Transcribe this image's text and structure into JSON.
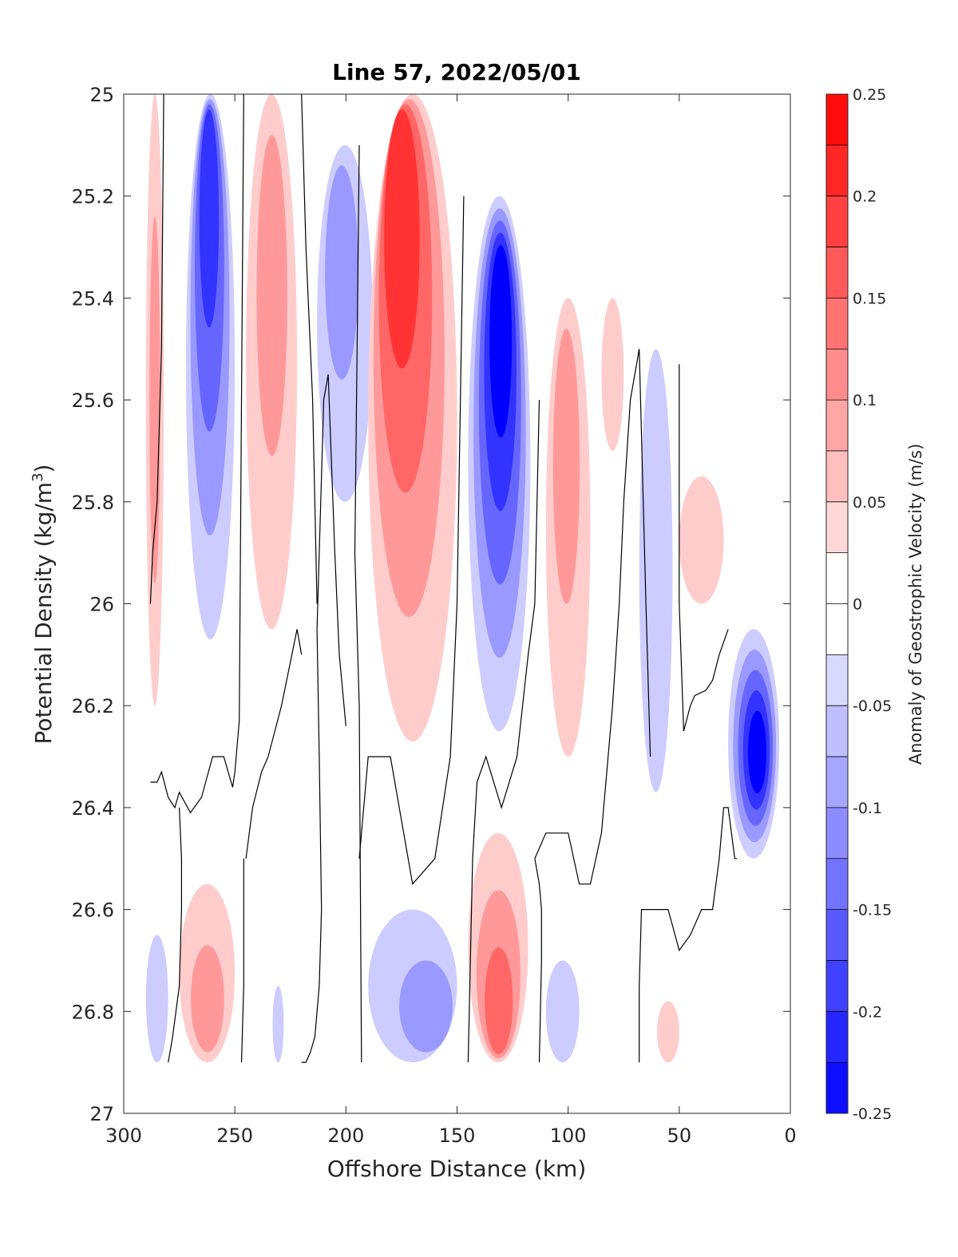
{
  "chart_data": {
    "type": "heatmap",
    "subtype": "filled-contour",
    "title": "Line 57, 2022/05/01",
    "xlabel": "Offshore Distance (km)",
    "ylabel_main": "Potential Density (kg/m",
    "ylabel_sup": "3",
    "ylabel_end": ")",
    "colorbar_label": "Anomaly of Geostrophic Velocity (m/s)",
    "xlim": [
      300,
      0
    ],
    "ylim": [
      27,
      25
    ],
    "x_reversed": true,
    "y_reversed": true,
    "xticks": [
      300,
      250,
      200,
      150,
      100,
      50,
      0
    ],
    "xtick_labels": [
      "300",
      "250",
      "200",
      "150",
      "100",
      "50",
      "0"
    ],
    "yticks": [
      25,
      25.2,
      25.4,
      25.6,
      25.8,
      26,
      26.2,
      26.4,
      26.6,
      26.8,
      27
    ],
    "ytick_labels": [
      "25",
      "25.2",
      "25.4",
      "25.6",
      "25.8",
      "26",
      "26.2",
      "26.4",
      "26.6",
      "26.8",
      "27"
    ],
    "clim": [
      -0.25,
      0.25
    ],
    "colorbar_ticks": [
      0.25,
      0.2,
      0.15,
      0.1,
      0.05,
      0,
      -0.05,
      -0.1,
      -0.15,
      -0.2,
      -0.25
    ],
    "colorbar_tick_labels": [
      "0.25",
      "0.2",
      "0.15",
      "0.1",
      "0.05",
      "0",
      "-0.05",
      "-0.1",
      "-0.15",
      "-0.2",
      "-0.25"
    ],
    "colormap": {
      "levels": [
        0.225,
        0.175,
        0.125,
        0.075,
        0.025,
        -0.025,
        -0.075,
        -0.125,
        -0.175,
        -0.225
      ],
      "level_step": 0.025,
      "positive_color": "#ff0000",
      "negative_color": "#0000ff",
      "zero_color": "#ffffff"
    },
    "grid": false,
    "zero_contour_color": "#000000",
    "features": [
      {
        "x": [
          290,
          282
        ],
        "y": [
          25.0,
          26.2
        ],
        "peak": 0.08
      },
      {
        "x": [
          272,
          250
        ],
        "y": [
          25.0,
          26.07
        ],
        "peak": -0.18,
        "peak_x": 262,
        "peak_y": 25.05
      },
      {
        "x": [
          245,
          222
        ],
        "y": [
          25.0,
          26.05
        ],
        "peak": 0.1,
        "peak_x": 233,
        "peak_y": 25.2
      },
      {
        "x": [
          213,
          188
        ],
        "y": [
          25.1,
          25.8
        ],
        "peak": -0.08,
        "peak_x": 204,
        "peak_y": 25.2
      },
      {
        "x": [
          190,
          150
        ],
        "y": [
          25.0,
          26.27
        ],
        "peak": 0.18,
        "peak_x": 178,
        "peak_y": 25.05
      },
      {
        "x": [
          145,
          117
        ],
        "y": [
          25.2,
          26.25
        ],
        "peak": -0.24,
        "peak_x": 130,
        "peak_y": 25.35
      },
      {
        "x": [
          110,
          90
        ],
        "y": [
          25.4,
          26.3
        ],
        "peak": 0.1,
        "peak_x": 102,
        "peak_y": 25.55
      },
      {
        "x": [
          85,
          75
        ],
        "y": [
          25.4,
          25.7
        ],
        "peak": 0.04
      },
      {
        "x": [
          68,
          53
        ],
        "y": [
          25.5,
          26.37
        ],
        "peak": -0.05
      },
      {
        "x": [
          50,
          30
        ],
        "y": [
          25.75,
          26.0
        ],
        "peak": 0.05
      },
      {
        "x": [
          28,
          5
        ],
        "y": [
          26.05,
          26.5
        ],
        "peak": -0.24,
        "peak_x": 14,
        "peak_y": 26.3
      },
      {
        "x": [
          290,
          280
        ],
        "y": [
          26.65,
          26.9
        ],
        "peak": -0.03
      },
      {
        "x": [
          275,
          250
        ],
        "y": [
          26.55,
          26.9
        ],
        "peak": 0.08,
        "peak_x": 262,
        "peak_y": 26.85
      },
      {
        "x": [
          233,
          228
        ],
        "y": [
          26.75,
          26.9
        ],
        "peak": -0.03
      },
      {
        "x": [
          190,
          150
        ],
        "y": [
          26.6,
          26.9
        ],
        "peak": -0.09,
        "peak_x": 155,
        "peak_y": 26.85
      },
      {
        "x": [
          145,
          118
        ],
        "y": [
          26.45,
          26.9
        ],
        "peak": 0.15,
        "peak_x": 131,
        "peak_y": 26.87
      },
      {
        "x": [
          110,
          95
        ],
        "y": [
          26.7,
          26.9
        ],
        "peak": -0.04
      },
      {
        "x": [
          60,
          50
        ],
        "y": [
          26.78,
          26.9
        ],
        "peak": 0.06
      }
    ],
    "zero_contours": [
      {
        "x": [
          282,
          283,
          285,
          287,
          288
        ],
        "y": [
          25.0,
          25.5,
          25.8,
          25.9,
          26.0
        ]
      },
      {
        "x": [
          288,
          285,
          283,
          280,
          277,
          275,
          270,
          265,
          260,
          255,
          251,
          250,
          248,
          247,
          246
        ],
        "y": [
          26.35,
          26.35,
          26.33,
          26.38,
          26.4,
          26.37,
          26.41,
          26.38,
          26.3,
          26.3,
          26.36,
          26.33,
          26.23,
          25.6,
          25.0
        ]
      },
      {
        "x": [
          275,
          274,
          274,
          275,
          278,
          280
        ],
        "y": [
          26.4,
          26.5,
          26.6,
          26.75,
          26.85,
          26.9
        ]
      },
      {
        "x": [
          246,
          246,
          246,
          247
        ],
        "y": [
          26.5,
          26.6,
          26.75,
          26.9
        ]
      },
      {
        "x": [
          220,
          218,
          215,
          213
        ],
        "y": [
          25.0,
          25.3,
          25.6,
          26.0
        ]
      },
      {
        "x": [
          245,
          242,
          238,
          235,
          229,
          222,
          220
        ],
        "y": [
          26.5,
          26.4,
          26.33,
          26.3,
          26.2,
          26.05,
          26.1
        ]
      },
      {
        "x": [
          213,
          212,
          211,
          212,
          214,
          216,
          218,
          220
        ],
        "y": [
          26.05,
          26.3,
          26.6,
          26.75,
          26.85,
          26.88,
          26.9,
          26.9
        ]
      },
      {
        "x": [
          213,
          210,
          208,
          205,
          203,
          200
        ],
        "y": [
          26.05,
          25.6,
          25.55,
          25.9,
          26.1,
          26.24
        ]
      },
      {
        "x": [
          194,
          195,
          196,
          194,
          193
        ],
        "y": [
          25.1,
          25.5,
          25.9,
          26.2,
          26.9
        ]
      },
      {
        "x": [
          194,
          190,
          187,
          183,
          180,
          170,
          160,
          153,
          150,
          147
        ],
        "y": [
          26.5,
          26.3,
          26.3,
          26.3,
          26.3,
          26.55,
          26.5,
          26.3,
          26.0,
          25.2
        ]
      },
      {
        "x": [
          145,
          143,
          141,
          137,
          130,
          123,
          118,
          115,
          113
        ],
        "y": [
          26.9,
          26.5,
          26.35,
          26.3,
          26.4,
          26.3,
          26.1,
          26.0,
          25.6
        ]
      },
      {
        "x": [
          113,
          112,
          112,
          113,
          115
        ],
        "y": [
          26.9,
          26.7,
          26.6,
          26.55,
          26.5
        ]
      },
      {
        "x": [
          115,
          110,
          106,
          100,
          95,
          90,
          85,
          80,
          77,
          75,
          72,
          68,
          65,
          63
        ],
        "y": [
          26.5,
          26.45,
          26.45,
          26.45,
          26.55,
          26.55,
          26.45,
          26.2,
          26.0,
          25.8,
          25.6,
          25.5,
          26.0,
          26.3
        ]
      },
      {
        "x": [
          68,
          68,
          67,
          65,
          63
        ],
        "y": [
          26.9,
          26.75,
          26.6,
          26.6,
          26.6
        ]
      },
      {
        "x": [
          63,
          60,
          55,
          50,
          45,
          40,
          35,
          32,
          30,
          28,
          25,
          24
        ],
        "y": [
          26.6,
          26.6,
          26.6,
          26.68,
          26.65,
          26.6,
          26.6,
          26.5,
          26.4,
          26.4,
          26.5,
          26.5
        ]
      },
      {
        "x": [
          50,
          50,
          48,
          45,
          43,
          38,
          35,
          32,
          28
        ],
        "y": [
          25.53,
          26.0,
          26.25,
          26.2,
          26.18,
          26.17,
          26.15,
          26.1,
          26.05
        ]
      }
    ]
  }
}
